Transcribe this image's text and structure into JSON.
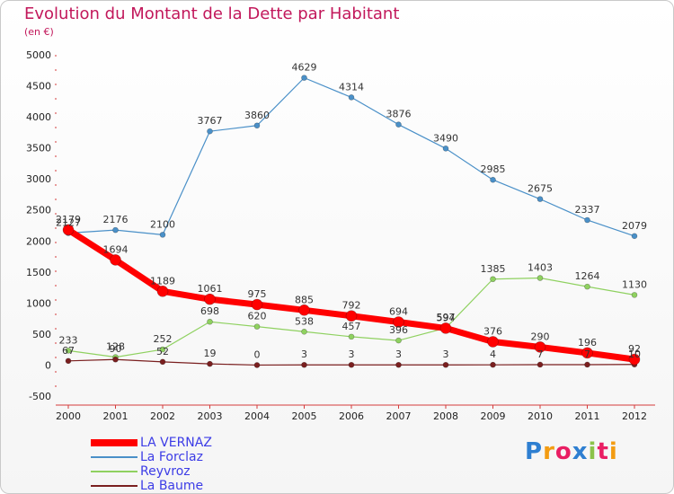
{
  "title": "Evolution du Montant de la Dette par Habitant",
  "subtitle": "(en €)",
  "logo": {
    "text": "Proxiti",
    "colors": [
      "#2e7fd1",
      "#f39c12",
      "#e91e63",
      "#2e7fd1",
      "#8bc34a",
      "#e91e63",
      "#f39c12"
    ]
  },
  "chart_data": {
    "type": "line",
    "x": [
      "2000",
      "2001",
      "2002",
      "2003",
      "2004",
      "2005",
      "2006",
      "2007",
      "2008",
      "2009",
      "2010",
      "2011",
      "2012"
    ],
    "ylim": [
      -500,
      5000
    ],
    "yticks": [
      -500,
      0,
      500,
      1000,
      1500,
      2000,
      2500,
      3000,
      3500,
      4000,
      4500,
      5000
    ],
    "grid": false,
    "legend_position": "bottom-left",
    "series": [
      {
        "name": "La Forclaz",
        "color": "#4a90c8",
        "values": [
          2127,
          2176,
          2100,
          3767,
          3860,
          4629,
          4314,
          3876,
          3490,
          2985,
          2675,
          2337,
          2079
        ]
      },
      {
        "name": "Reyvroz",
        "color": "#8fd160",
        "values": [
          233,
          128,
          252,
          698,
          620,
          538,
          457,
          396,
          597,
          1385,
          1403,
          1264,
          1130
        ]
      },
      {
        "name": "La Baume",
        "color": "#7a1f1f",
        "values": [
          67,
          90,
          52,
          19,
          0,
          3,
          3,
          3,
          3,
          4,
          7,
          7,
          10
        ]
      },
      {
        "name": "LA VERNAZ",
        "color": "#ff0000",
        "values": [
          2179,
          1694,
          1189,
          1061,
          975,
          885,
          792,
          694,
          594,
          376,
          290,
          196,
          92
        ]
      }
    ],
    "legend_order": [
      "LA VERNAZ",
      "La Forclaz",
      "Reyvroz",
      "La Baume"
    ]
  }
}
